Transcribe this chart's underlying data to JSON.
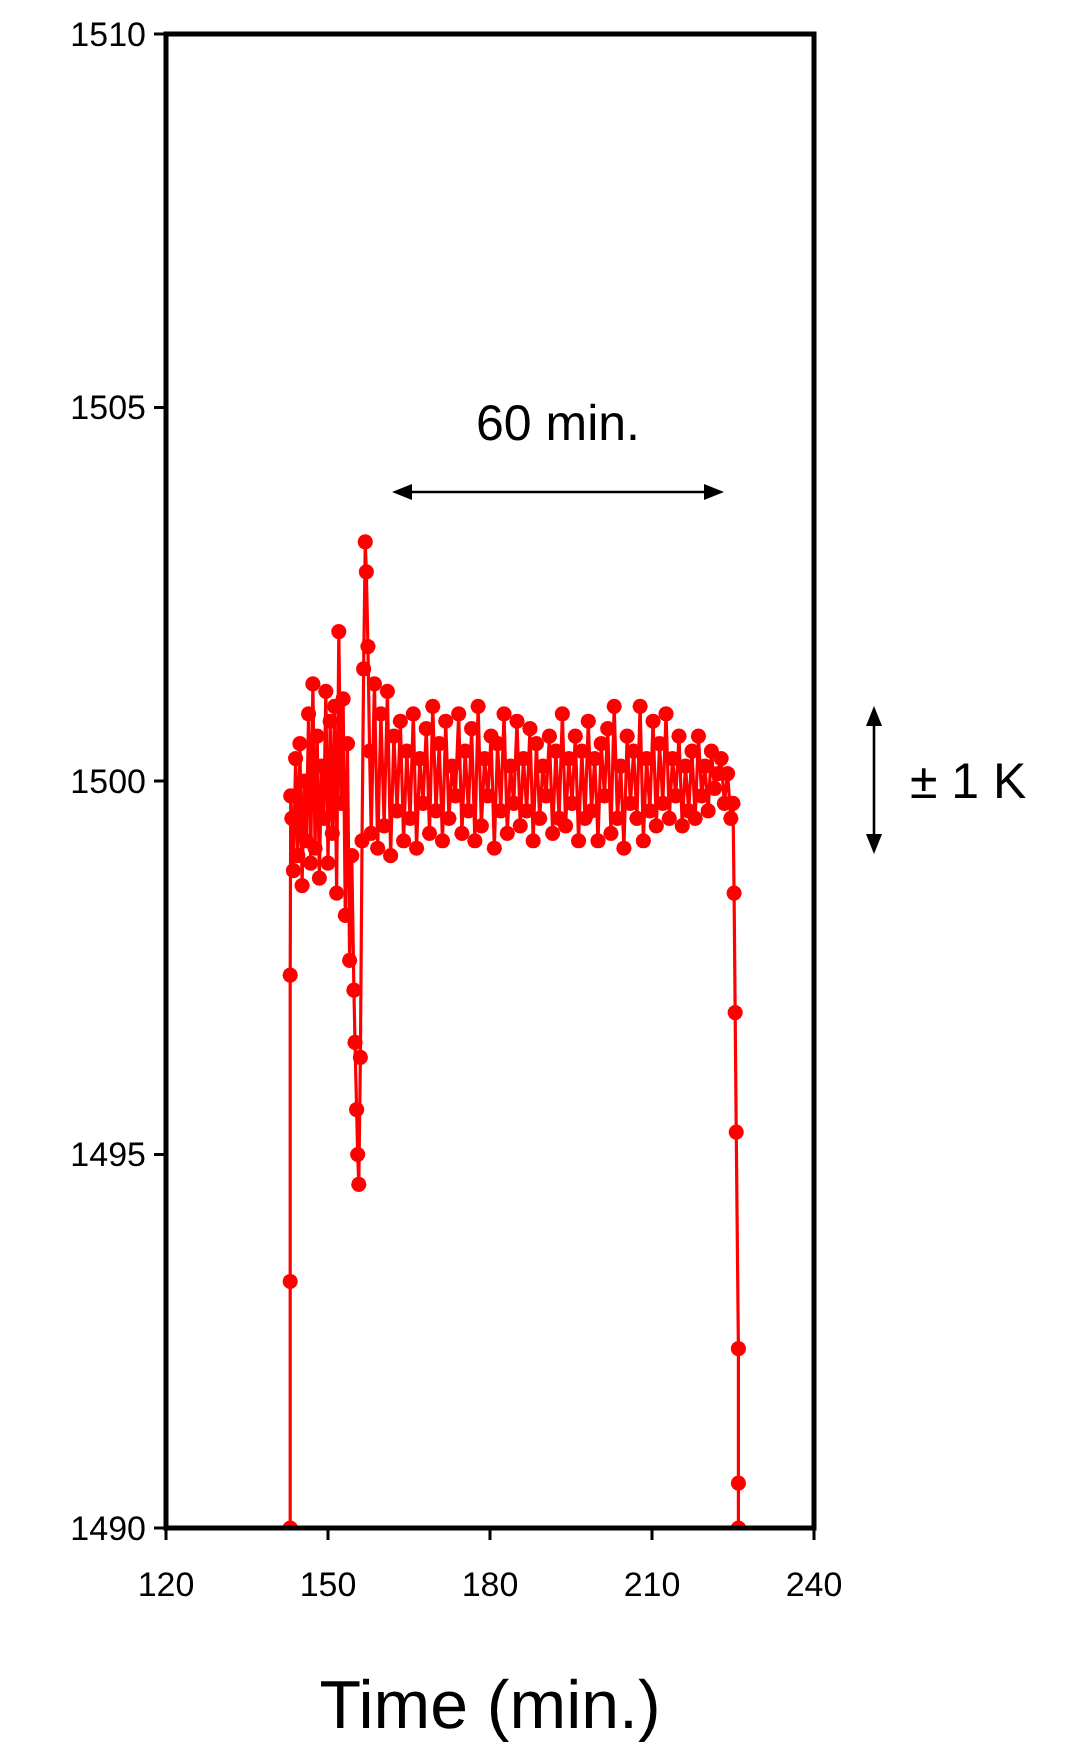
{
  "chart_data": {
    "type": "line",
    "xlabel": "Time (min.)",
    "xlim": [
      120,
      240
    ],
    "xticks": [
      120,
      150,
      180,
      210,
      240
    ],
    "ylim": [
      1490,
      1510
    ],
    "yticks": [
      1490,
      1495,
      1500,
      1505,
      1510
    ],
    "grid": false,
    "marker": "circle",
    "line_style": "solid",
    "annotations": [
      "60 min.",
      "± 1 K"
    ],
    "series": [
      {
        "color": "#ff0000",
        "x": [
          143,
          143,
          143,
          143.1,
          143.3,
          143.6,
          144,
          144.4,
          144.8,
          145.2,
          145.6,
          146,
          146.4,
          146.8,
          147.2,
          147.6,
          148,
          148.4,
          148.8,
          149.2,
          149.6,
          150,
          150.4,
          150.8,
          151.2,
          151.6,
          152,
          152.4,
          152.8,
          153.2,
          153.6,
          154,
          154.4,
          154.8,
          155,
          155.3,
          155.5,
          155.7,
          156,
          156.3,
          156.6,
          156.9,
          157.1,
          157.4,
          157.7,
          158,
          158.6,
          159.2,
          159.8,
          160.4,
          161,
          161.6,
          162.2,
          162.8,
          163.4,
          164,
          164.6,
          165.2,
          165.8,
          166.4,
          167,
          167.6,
          168.2,
          168.8,
          169.4,
          170,
          170.6,
          171.2,
          171.8,
          172.4,
          173,
          173.6,
          174.2,
          174.8,
          175.4,
          176,
          176.6,
          177.2,
          177.8,
          178.4,
          179,
          179.6,
          180.2,
          180.8,
          181.4,
          182,
          182.6,
          183.2,
          183.8,
          184.4,
          185,
          185.6,
          186.2,
          186.8,
          187.4,
          188,
          188.6,
          189.2,
          189.8,
          190.4,
          191,
          191.6,
          192.2,
          192.8,
          193.4,
          194,
          194.6,
          195.2,
          195.8,
          196.4,
          197,
          197.6,
          198.2,
          198.8,
          199.4,
          200,
          200.6,
          201.2,
          201.8,
          202.4,
          203,
          203.6,
          204.2,
          204.8,
          205.4,
          206,
          206.6,
          207.2,
          207.8,
          208.4,
          209,
          209.6,
          210.2,
          210.8,
          211.4,
          212,
          212.6,
          213.2,
          213.8,
          214.4,
          215,
          215.6,
          216.2,
          216.8,
          217.4,
          218,
          218.6,
          219.2,
          219.8,
          220.4,
          221,
          221.6,
          222.2,
          222.8,
          223.4,
          224,
          224.6,
          225,
          225.2,
          225.4,
          225.6,
          226,
          226,
          226
        ],
        "values": [
          1490,
          1493.3,
          1497.4,
          1499.8,
          1499.5,
          1498.8,
          1500.3,
          1499,
          1500.5,
          1498.6,
          1500,
          1499.2,
          1500.9,
          1498.9,
          1501.3,
          1499.1,
          1500.6,
          1498.7,
          1500.2,
          1499.5,
          1501.2,
          1498.9,
          1500.8,
          1499.3,
          1501,
          1498.5,
          1502,
          1499.7,
          1501.1,
          1498.2,
          1500.5,
          1497.6,
          1499,
          1497.2,
          1496.5,
          1495.6,
          1495,
          1494.6,
          1496.3,
          1499.2,
          1501.5,
          1503.2,
          1502.8,
          1501.8,
          1500.4,
          1499.3,
          1501.3,
          1499.1,
          1500.9,
          1499.4,
          1501.2,
          1499,
          1500.6,
          1499.6,
          1500.8,
          1499.2,
          1500.4,
          1499.5,
          1500.9,
          1499.1,
          1500.3,
          1499.7,
          1500.7,
          1499.3,
          1501,
          1499.6,
          1500.5,
          1499.2,
          1500.8,
          1499.5,
          1500.2,
          1499.8,
          1500.9,
          1499.3,
          1500.4,
          1499.6,
          1500.7,
          1499.2,
          1501,
          1499.4,
          1500.3,
          1499.8,
          1500.6,
          1499.1,
          1500.5,
          1499.6,
          1500.9,
          1499.3,
          1500.2,
          1499.7,
          1500.8,
          1499.4,
          1500.3,
          1499.6,
          1500.7,
          1499.2,
          1500.5,
          1499.5,
          1500.2,
          1499.8,
          1500.6,
          1499.3,
          1500.4,
          1499.5,
          1500.9,
          1499.4,
          1500.3,
          1499.7,
          1500.6,
          1499.2,
          1500.4,
          1499.5,
          1500.8,
          1499.6,
          1500.3,
          1499.2,
          1500.5,
          1499.8,
          1500.7,
          1499.3,
          1501,
          1499.5,
          1500.2,
          1499.1,
          1500.6,
          1499.7,
          1500.4,
          1499.5,
          1501,
          1499.2,
          1500.3,
          1499.6,
          1500.8,
          1499.4,
          1500.5,
          1499.7,
          1500.9,
          1499.5,
          1500.3,
          1499.8,
          1500.6,
          1499.4,
          1500.2,
          1499.6,
          1500.4,
          1499.5,
          1500.6,
          1499.8,
          1500.2,
          1499.6,
          1500.4,
          1499.9,
          1500.1,
          1500.3,
          1499.7,
          1500.1,
          1499.5,
          1499.7,
          1498.5,
          1496.9,
          1495.3,
          1492.4,
          1490.6,
          1490
        ]
      }
    ]
  }
}
